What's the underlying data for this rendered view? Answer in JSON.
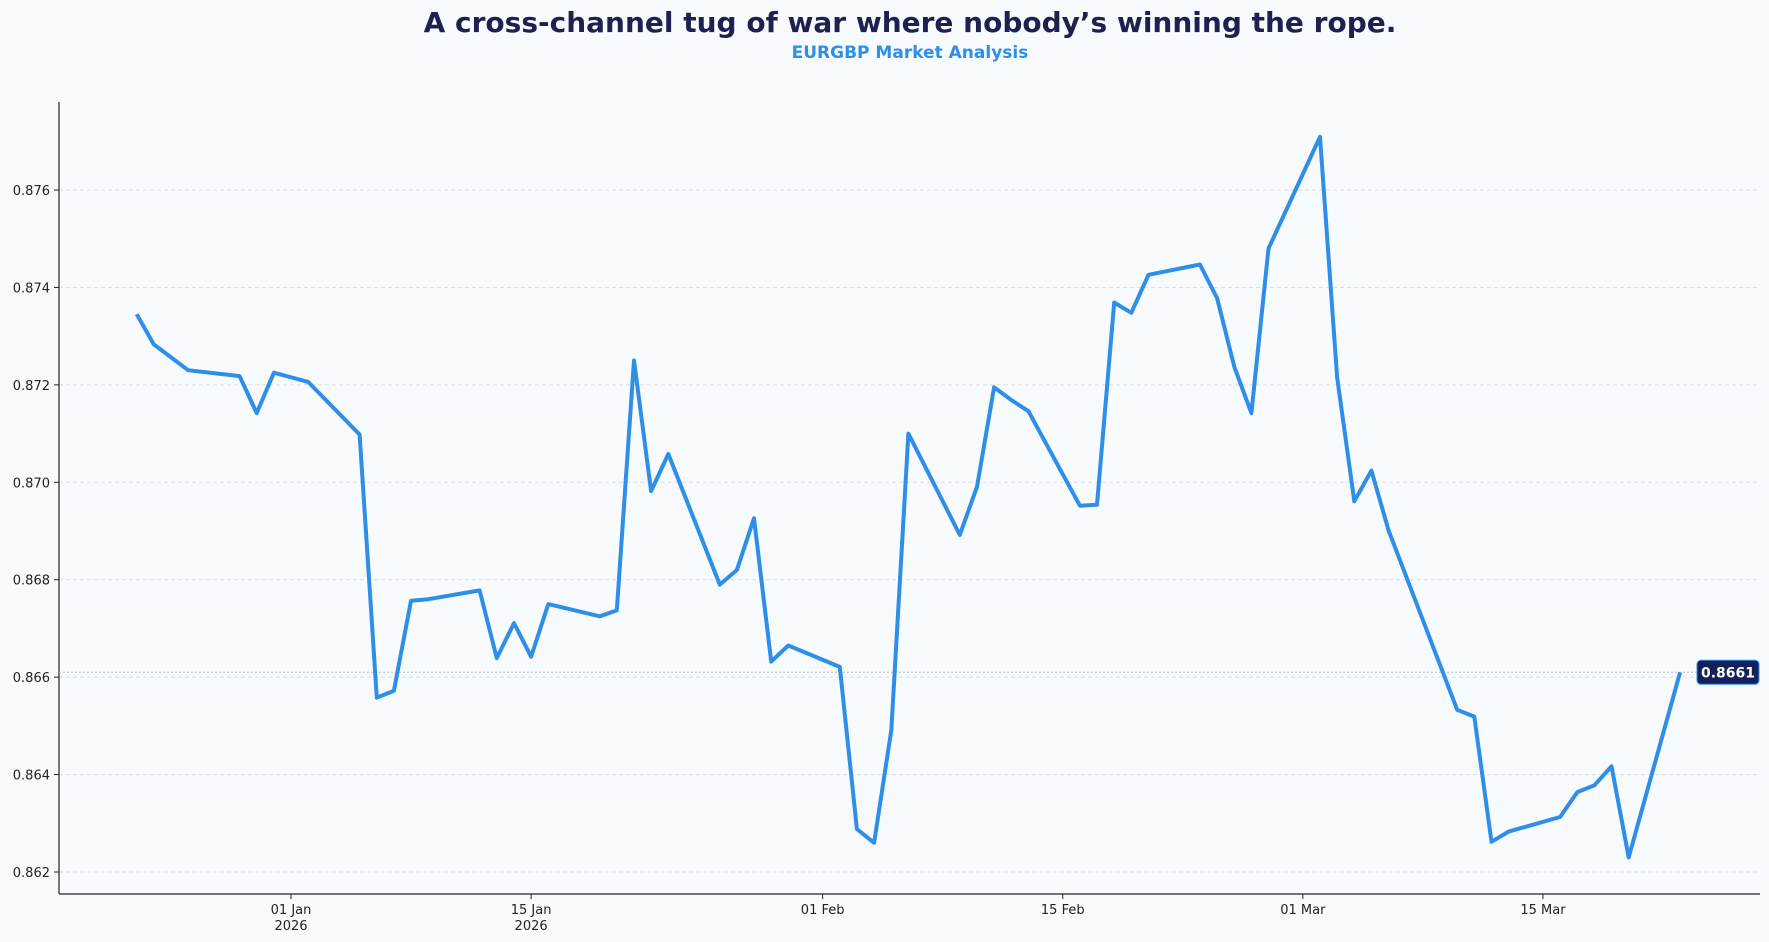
{
  "chart_data": {
    "type": "line",
    "title": "A cross-channel tug of war where nobody’s winning the rope.",
    "subtitle": "EURGBP Market Analysis",
    "xlabel": "",
    "ylabel": "",
    "ylim": [
      0.8616,
      0.8778
    ],
    "yticks": [
      "0.862",
      "0.864",
      "0.866",
      "0.868",
      "0.870",
      "0.872",
      "0.874",
      "0.876"
    ],
    "ytick_values": [
      0.862,
      0.864,
      0.866,
      0.868,
      0.87,
      0.872,
      0.874,
      0.876
    ],
    "xticks": [
      {
        "date": "2026-01-01",
        "label": "01 Jan",
        "sub": "2026"
      },
      {
        "date": "2026-01-15",
        "label": "15 Jan",
        "sub": "2026"
      },
      {
        "date": "2026-02-01",
        "label": "01 Feb",
        "sub": ""
      },
      {
        "date": "2026-02-15",
        "label": "15 Feb",
        "sub": ""
      },
      {
        "date": "2026-03-01",
        "label": "01 Mar",
        "sub": ""
      },
      {
        "date": "2026-03-15",
        "label": "15 Mar",
        "sub": ""
      }
    ],
    "grid": true,
    "last_value_label": "0.8661",
    "colors": {
      "line": "#2e8ee8",
      "label_bg": "#15205a",
      "title": "#1e2150"
    },
    "series": [
      {
        "name": "EURGBP",
        "x": [
          "2025-12-23",
          "2025-12-24",
          "2025-12-26",
          "2025-12-29",
          "2025-12-30",
          "2025-12-31",
          "2026-01-02",
          "2026-01-05",
          "2026-01-06",
          "2026-01-07",
          "2026-01-08",
          "2026-01-09",
          "2026-01-12",
          "2026-01-13",
          "2026-01-14",
          "2026-01-15",
          "2026-01-16",
          "2026-01-19",
          "2026-01-20",
          "2026-01-21",
          "2026-01-22",
          "2026-01-23",
          "2026-01-26",
          "2026-01-27",
          "2026-01-28",
          "2026-01-29",
          "2026-01-30",
          "2026-02-02",
          "2026-02-03",
          "2026-02-04",
          "2026-02-05",
          "2026-02-06",
          "2026-02-09",
          "2026-02-10",
          "2026-02-11",
          "2026-02-12",
          "2026-02-13",
          "2026-02-16",
          "2026-02-17",
          "2026-02-18",
          "2026-02-19",
          "2026-02-20",
          "2026-02-23",
          "2026-02-24",
          "2026-02-25",
          "2026-02-26",
          "2026-02-27",
          "2026-03-02",
          "2026-03-03",
          "2026-03-04",
          "2026-03-05",
          "2026-03-06",
          "2026-03-10",
          "2026-03-11",
          "2026-03-12",
          "2026-03-13",
          "2026-03-16",
          "2026-03-17",
          "2026-03-18",
          "2026-03-19",
          "2026-03-20",
          "2026-03-23"
        ],
        "values": [
          0.87345,
          0.87283,
          0.8723,
          0.87218,
          0.87142,
          0.87225,
          0.87206,
          0.87098,
          0.86558,
          0.86572,
          0.86757,
          0.8676,
          0.86778,
          0.86639,
          0.86711,
          0.86642,
          0.8675,
          0.86725,
          0.86737,
          0.8725,
          0.86982,
          0.87058,
          0.8679,
          0.8682,
          0.86926,
          0.86632,
          0.86665,
          0.86621,
          0.86288,
          0.8626,
          0.86491,
          0.871,
          0.86892,
          0.86991,
          0.87195,
          0.87169,
          0.87146,
          0.86952,
          0.86954,
          0.87369,
          0.87348,
          0.87426,
          0.87447,
          0.87378,
          0.87237,
          0.87142,
          0.8748,
          0.87709,
          0.87216,
          0.86961,
          0.87024,
          0.86901,
          0.86533,
          0.86519,
          0.86262,
          0.86283,
          0.86313,
          0.86364,
          0.86378,
          0.86417,
          0.8623,
          0.8661
        ]
      }
    ]
  }
}
